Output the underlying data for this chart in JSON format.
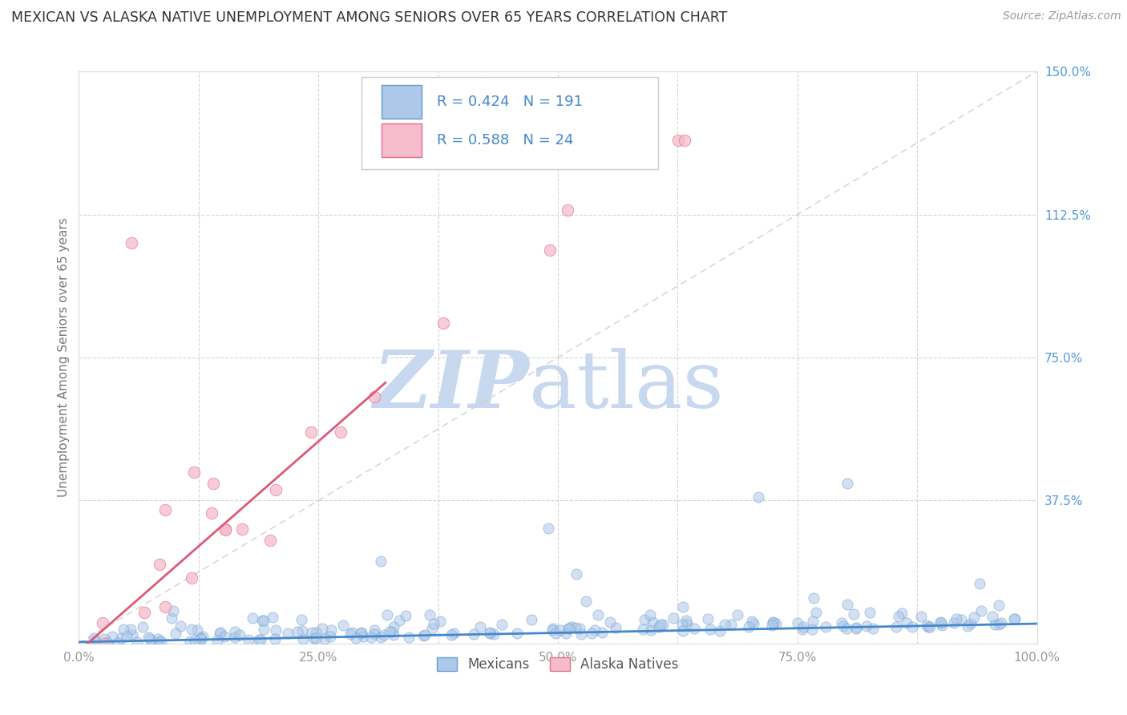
{
  "title": "MEXICAN VS ALASKA NATIVE UNEMPLOYMENT AMONG SENIORS OVER 65 YEARS CORRELATION CHART",
  "source": "Source: ZipAtlas.com",
  "ylabel": "Unemployment Among Seniors over 65 years",
  "xlim": [
    0.0,
    1.0
  ],
  "ylim": [
    0.0,
    1.5
  ],
  "xticks": [
    0.0,
    0.125,
    0.25,
    0.375,
    0.5,
    0.625,
    0.75,
    0.875,
    1.0
  ],
  "xtick_labels": [
    "0.0%",
    "",
    "25.0%",
    "",
    "50.0%",
    "",
    "75.0%",
    "",
    "100.0%"
  ],
  "yticks": [
    0.0,
    0.375,
    0.75,
    1.125,
    1.5
  ],
  "ytick_labels": [
    "",
    "37.5%",
    "75.0%",
    "112.5%",
    "150.0%"
  ],
  "mexican_R": 0.424,
  "mexican_N": 191,
  "alaska_R": 0.588,
  "alaska_N": 24,
  "mexican_color": "#adc8e8",
  "mexican_edge": "#6699cc",
  "alaska_color": "#f5bccb",
  "alaska_edge": "#e07090",
  "mexican_line_color": "#4488cc",
  "alaska_line_color": "#e05878",
  "watermark_zip_color": "#c8d8ee",
  "watermark_atlas_color": "#c8d8ee",
  "background_color": "#ffffff",
  "grid_color": "#cccccc",
  "title_color": "#333333",
  "axis_label_color": "#777777",
  "ytick_color": "#5599dd",
  "xtick_color": "#999999",
  "legend_r_color": "#333333",
  "legend_val_color": "#4488cc",
  "legend_n_color": "#cc3333",
  "mexican_seed": 42,
  "alaska_seed": 7,
  "mex_line_slope": 0.048,
  "mex_line_intercept": 0.004,
  "ak_line_slope": 2.2,
  "ak_line_intercept": -0.02,
  "ak_line_xmax": 0.32
}
